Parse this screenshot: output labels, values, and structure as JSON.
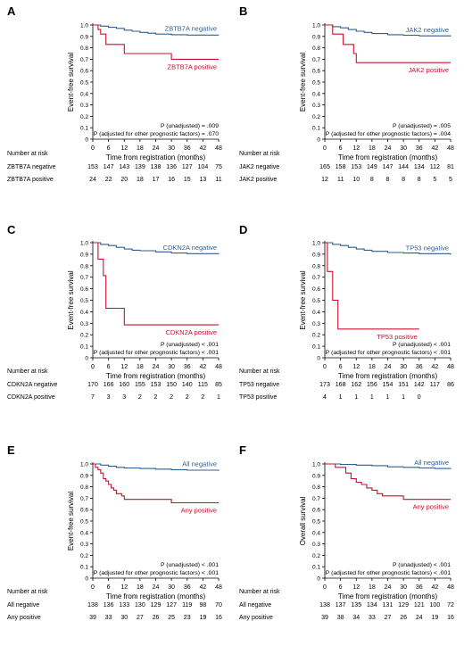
{
  "colors": {
    "negative": "#2f5f8f",
    "positive": "#c8102e",
    "axis": "#000000"
  },
  "chart_data": [
    {
      "type": "line",
      "panel_letter": "A",
      "ylabel": "Event-free survival",
      "xlabel": "Time from registration (months)",
      "ylim": [
        0,
        1.0
      ],
      "xlim": [
        0,
        48
      ],
      "y_ticks": [
        "0",
        "0.1",
        "0.2",
        "0.3",
        "0.4",
        "0.5",
        "0.6",
        "0.7",
        "0.8",
        "0.9",
        "1.0"
      ],
      "x_ticks": [
        "0",
        "6",
        "12",
        "18",
        "24",
        "30",
        "36",
        "42",
        "48"
      ],
      "series": [
        {
          "name": "ZBTB7A negative",
          "color_role": "negative",
          "end_x": 48,
          "steps": [
            [
              0,
              1.0
            ],
            [
              3,
              0.99
            ],
            [
              6,
              0.98
            ],
            [
              9,
              0.97
            ],
            [
              12,
              0.955
            ],
            [
              15,
              0.945
            ],
            [
              18,
              0.935
            ],
            [
              21,
              0.928
            ],
            [
              24,
              0.92
            ],
            [
              30,
              0.915
            ],
            [
              36,
              0.912
            ],
            [
              48,
              0.91
            ]
          ]
        },
        {
          "name": "ZBTB7A positive",
          "color_role": "positive",
          "end_x": 48,
          "steps": [
            [
              0,
              1.0
            ],
            [
              2,
              0.96
            ],
            [
              3,
              0.92
            ],
            [
              5,
              0.83
            ],
            [
              12,
              0.75
            ],
            [
              30,
              0.7
            ]
          ]
        }
      ],
      "annotations": [
        "P (unadjusted) = .009",
        "P (adjusted for other prognostic factors) = .070"
      ],
      "risk_header": "Number at risk",
      "risk_table": [
        {
          "label": "ZBTB7A negative",
          "values": [
            "153",
            "147",
            "143",
            "139",
            "138",
            "136",
            "127",
            "104",
            "75"
          ]
        },
        {
          "label": "ZBTB7A positive",
          "values": [
            "24",
            "22",
            "20",
            "18",
            "17",
            "16",
            "15",
            "13",
            "11"
          ]
        }
      ]
    },
    {
      "type": "line",
      "panel_letter": "B",
      "ylabel": "Event-free survival",
      "xlabel": "Time from registration (months)",
      "ylim": [
        0,
        1.0
      ],
      "xlim": [
        0,
        48
      ],
      "y_ticks": [
        "0",
        "0.1",
        "0.2",
        "0.3",
        "0.4",
        "0.5",
        "0.6",
        "0.7",
        "0.8",
        "0.9",
        "1.0"
      ],
      "x_ticks": [
        "0",
        "6",
        "12",
        "18",
        "24",
        "30",
        "36",
        "42",
        "48"
      ],
      "series": [
        {
          "name": "JAK2 negative",
          "color_role": "negative",
          "end_x": 48,
          "steps": [
            [
              0,
              1.0
            ],
            [
              3,
              0.985
            ],
            [
              6,
              0.975
            ],
            [
              9,
              0.96
            ],
            [
              12,
              0.945
            ],
            [
              15,
              0.935
            ],
            [
              18,
              0.925
            ],
            [
              24,
              0.915
            ],
            [
              30,
              0.91
            ],
            [
              36,
              0.905
            ],
            [
              48,
              0.9
            ]
          ]
        },
        {
          "name": "JAK2 positive",
          "color_role": "positive",
          "end_x": 48,
          "steps": [
            [
              0,
              1.0
            ],
            [
              3,
              0.92
            ],
            [
              7,
              0.83
            ],
            [
              11,
              0.75
            ],
            [
              12,
              0.67
            ]
          ]
        }
      ],
      "annotations": [
        "P (unadjusted) = .005",
        "P (adjusted for other prognostic factors) = .004"
      ],
      "risk_header": "Number at risk",
      "risk_table": [
        {
          "label": "JAK2 negative",
          "values": [
            "165",
            "158",
            "153",
            "149",
            "147",
            "144",
            "134",
            "112",
            "81"
          ]
        },
        {
          "label": "JAK2 positive",
          "values": [
            "12",
            "11",
            "10",
            "8",
            "8",
            "8",
            "8",
            "5",
            "5"
          ]
        }
      ]
    },
    {
      "type": "line",
      "panel_letter": "C",
      "ylabel": "Event-free survival",
      "xlabel": "Time from registration (months)",
      "ylim": [
        0,
        1.0
      ],
      "xlim": [
        0,
        48
      ],
      "y_ticks": [
        "0",
        "0.1",
        "0.2",
        "0.3",
        "0.4",
        "0.5",
        "0.6",
        "0.7",
        "0.8",
        "0.9",
        "1.0"
      ],
      "x_ticks": [
        "0",
        "6",
        "12",
        "18",
        "24",
        "30",
        "36",
        "42",
        "48"
      ],
      "series": [
        {
          "name": "CDKN2A negative",
          "color_role": "negative",
          "end_x": 48,
          "steps": [
            [
              0,
              1.0
            ],
            [
              3,
              0.985
            ],
            [
              6,
              0.975
            ],
            [
              9,
              0.96
            ],
            [
              12,
              0.945
            ],
            [
              15,
              0.935
            ],
            [
              18,
              0.93
            ],
            [
              24,
              0.92
            ],
            [
              30,
              0.91
            ],
            [
              36,
              0.905
            ],
            [
              48,
              0.9
            ]
          ]
        },
        {
          "name": "CDKN2A positive",
          "color_role": "positive",
          "end_x": 48,
          "steps": [
            [
              0,
              1.0
            ],
            [
              2,
              0.857
            ],
            [
              4,
              0.714
            ],
            [
              5,
              0.43
            ],
            [
              12,
              0.286
            ]
          ]
        }
      ],
      "annotations": [
        "P (unadjusted) < .001",
        "P (adjusted for other prognostic factors) < .001"
      ],
      "risk_header": "Number at risk",
      "risk_table": [
        {
          "label": "CDKN2A negative",
          "values": [
            "170",
            "166",
            "160",
            "155",
            "153",
            "150",
            "140",
            "115",
            "85"
          ]
        },
        {
          "label": "CDKN2A positive",
          "values": [
            "7",
            "3",
            "3",
            "2",
            "2",
            "2",
            "2",
            "2",
            "1"
          ]
        }
      ]
    },
    {
      "type": "line",
      "panel_letter": "D",
      "ylabel": "Event-free survival",
      "xlabel": "Time from registration (months)",
      "ylim": [
        0,
        1.0
      ],
      "xlim": [
        0,
        48
      ],
      "y_ticks": [
        "0",
        "0.1",
        "0.2",
        "0.3",
        "0.4",
        "0.5",
        "0.6",
        "0.7",
        "0.8",
        "0.9",
        "1.0"
      ],
      "x_ticks": [
        "0",
        "6",
        "12",
        "18",
        "24",
        "30",
        "36",
        "42",
        "48"
      ],
      "series": [
        {
          "name": "TP53 negative",
          "color_role": "negative",
          "end_x": 48,
          "steps": [
            [
              0,
              1.0
            ],
            [
              3,
              0.985
            ],
            [
              6,
              0.975
            ],
            [
              9,
              0.96
            ],
            [
              12,
              0.945
            ],
            [
              15,
              0.935
            ],
            [
              18,
              0.925
            ],
            [
              24,
              0.915
            ],
            [
              30,
              0.91
            ],
            [
              36,
              0.905
            ],
            [
              48,
              0.895
            ]
          ]
        },
        {
          "name": "TP53 positive",
          "color_role": "positive",
          "end_x": 36,
          "steps": [
            [
              0,
              1.0
            ],
            [
              1,
              0.75
            ],
            [
              3,
              0.5
            ],
            [
              5,
              0.25
            ]
          ]
        }
      ],
      "annotations": [
        "P (unadjusted) < .001",
        "P (adjusted for other prognostic factors) < .001"
      ],
      "risk_header": "Number at risk",
      "risk_table": [
        {
          "label": "TP53 negative",
          "values": [
            "173",
            "168",
            "162",
            "156",
            "154",
            "151",
            "142",
            "117",
            "86"
          ]
        },
        {
          "label": "TP53 positive",
          "values": [
            "4",
            "1",
            "1",
            "1",
            "1",
            "1",
            "0",
            "",
            ""
          ]
        }
      ]
    },
    {
      "type": "line",
      "panel_letter": "E",
      "ylabel": "Event-free survival",
      "xlabel": "Time from registration (months)",
      "ylim": [
        0,
        1.0
      ],
      "xlim": [
        0,
        48
      ],
      "y_ticks": [
        "0",
        "0.1",
        "0.2",
        "0.3",
        "0.4",
        "0.5",
        "0.6",
        "0.7",
        "0.8",
        "0.9",
        "1.0"
      ],
      "x_ticks": [
        "0",
        "6",
        "12",
        "18",
        "24",
        "30",
        "36",
        "42",
        "48"
      ],
      "series": [
        {
          "name": "All negative",
          "color_role": "negative",
          "end_x": 48,
          "steps": [
            [
              0,
              1.0
            ],
            [
              3,
              0.99
            ],
            [
              6,
              0.98
            ],
            [
              9,
              0.97
            ],
            [
              12,
              0.965
            ],
            [
              18,
              0.96
            ],
            [
              24,
              0.955
            ],
            [
              30,
              0.95
            ],
            [
              36,
              0.945
            ],
            [
              48,
              0.94
            ]
          ]
        },
        {
          "name": "Any positive",
          "color_role": "positive",
          "end_x": 48,
          "steps": [
            [
              0,
              1.0
            ],
            [
              1,
              0.97
            ],
            [
              2,
              0.95
            ],
            [
              3,
              0.92
            ],
            [
              4,
              0.87
            ],
            [
              5,
              0.85
            ],
            [
              6,
              0.82
            ],
            [
              7,
              0.79
            ],
            [
              8,
              0.77
            ],
            [
              9,
              0.74
            ],
            [
              11,
              0.72
            ],
            [
              12,
              0.69
            ],
            [
              30,
              0.66
            ]
          ]
        }
      ],
      "annotations": [
        "P (unadjusted) < .001",
        "P (adjusted for other prognostic factors) < .001"
      ],
      "risk_header": "Number at risk",
      "risk_table": [
        {
          "label": "All negative",
          "values": [
            "138",
            "136",
            "133",
            "130",
            "129",
            "127",
            "119",
            "98",
            "70"
          ]
        },
        {
          "label": "Any positive",
          "values": [
            "39",
            "33",
            "30",
            "27",
            "26",
            "25",
            "23",
            "19",
            "16"
          ]
        }
      ]
    },
    {
      "type": "line",
      "panel_letter": "F",
      "ylabel": "Overall survival",
      "xlabel": "Time from registration (months)",
      "ylim": [
        0,
        1.0
      ],
      "xlim": [
        0,
        48
      ],
      "y_ticks": [
        "0",
        "0.1",
        "0.2",
        "0.3",
        "0.4",
        "0.5",
        "0.6",
        "0.7",
        "0.8",
        "0.9",
        "1.0"
      ],
      "x_ticks": [
        "0",
        "6",
        "12",
        "18",
        "24",
        "30",
        "36",
        "42",
        "48"
      ],
      "series": [
        {
          "name": "All negative",
          "color_role": "negative",
          "end_x": 48,
          "steps": [
            [
              0,
              1.0
            ],
            [
              6,
              0.995
            ],
            [
              12,
              0.99
            ],
            [
              18,
              0.985
            ],
            [
              24,
              0.975
            ],
            [
              30,
              0.97
            ],
            [
              36,
              0.965
            ],
            [
              42,
              0.96
            ],
            [
              48,
              0.955
            ]
          ]
        },
        {
          "name": "Any positive",
          "color_role": "positive",
          "end_x": 48,
          "steps": [
            [
              0,
              1.0
            ],
            [
              4,
              0.97
            ],
            [
              8,
              0.92
            ],
            [
              10,
              0.87
            ],
            [
              12,
              0.84
            ],
            [
              14,
              0.82
            ],
            [
              16,
              0.79
            ],
            [
              18,
              0.77
            ],
            [
              20,
              0.74
            ],
            [
              22,
              0.72
            ],
            [
              30,
              0.69
            ]
          ]
        }
      ],
      "annotations": [
        "P (unadjusted) < .001",
        "P (adjusted for other prognostic factors) < .001"
      ],
      "risk_header": "Number at risk",
      "risk_table": [
        {
          "label": "All negative",
          "values": [
            "138",
            "137",
            "135",
            "134",
            "131",
            "129",
            "121",
            "100",
            "72"
          ]
        },
        {
          "label": "Any positive",
          "values": [
            "39",
            "38",
            "34",
            "33",
            "27",
            "26",
            "24",
            "19",
            "16"
          ]
        }
      ]
    }
  ]
}
